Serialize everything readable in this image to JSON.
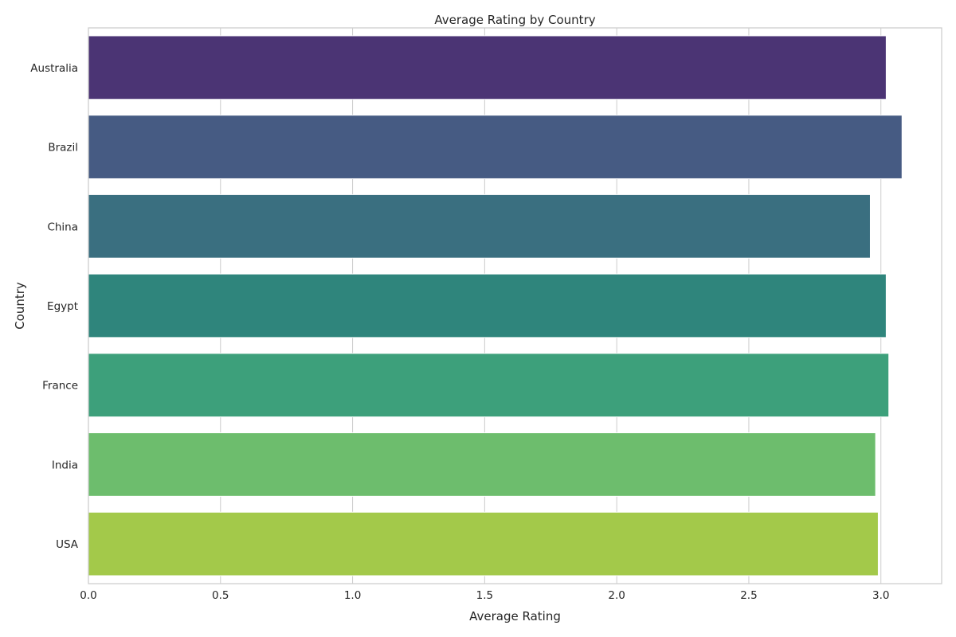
{
  "chart_data": {
    "type": "bar",
    "orientation": "horizontal",
    "title": "Average Rating by Country",
    "xlabel": "Average Rating",
    "ylabel": "Country",
    "categories": [
      "Australia",
      "Brazil",
      "China",
      "Egypt",
      "France",
      "India",
      "USA"
    ],
    "values": [
      3.02,
      3.08,
      2.96,
      3.02,
      3.03,
      2.98,
      2.99
    ],
    "colors": [
      "#4b3474",
      "#465b83",
      "#3a6f80",
      "#2f857c",
      "#3da07b",
      "#6dbd6d",
      "#a3c94a"
    ],
    "xlim": [
      0,
      3.23
    ],
    "xticks": [
      0.0,
      0.5,
      1.0,
      1.5,
      2.0,
      2.5,
      3.0
    ],
    "xtick_labels": [
      "0.0",
      "0.5",
      "1.0",
      "1.5",
      "2.0",
      "2.5",
      "3.0"
    ],
    "grid": "vertical",
    "legend": "none"
  }
}
